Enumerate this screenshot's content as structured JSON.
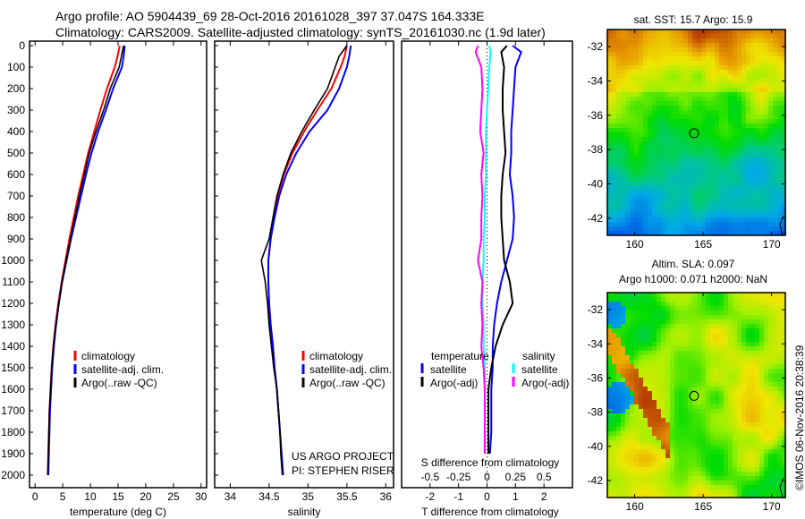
{
  "title_line1": "Argo profile: AO 5904439_69 28-Oct-2016 20161028_397 37.047S 164.333E",
  "title_line2": "Climatology: CARS2009. Satellite-adjusted climatology: synTS_20161030.nc (1.9d later)",
  "project_line1": "US ARGO PROJECT",
  "project_line2": "PI: STEPHEN RISER",
  "timestamp": "©IMOS 06-Nov-2016 20:38:39",
  "colors": {
    "climatology": "#ff0000",
    "satellite": "#0000ff",
    "argo": "#000000",
    "s_satellite": "#00ffff",
    "s_argo": "#ff00ff"
  },
  "chart_data": [
    {
      "type": "line",
      "name": "temperature",
      "xlabel": "temperature (deg C)",
      "ylabel": "",
      "xlim": [
        -1,
        31
      ],
      "ylim": [
        2050,
        0
      ],
      "xticks": [
        0,
        5,
        10,
        15,
        20,
        25,
        30
      ],
      "yticks": [
        0,
        100,
        200,
        300,
        400,
        500,
        600,
        700,
        800,
        900,
        1000,
        1100,
        1200,
        1300,
        1400,
        1500,
        1600,
        1700,
        1800,
        1900,
        2000
      ],
      "legend": [
        "climatology",
        "satellite-adj. clim.",
        "Argo(..raw -QC)"
      ],
      "depth": [
        0,
        50,
        100,
        200,
        300,
        400,
        500,
        600,
        700,
        800,
        900,
        1000,
        1100,
        1200,
        1300,
        1400,
        1500,
        1600,
        1700,
        1800,
        1900,
        2000
      ],
      "series": [
        {
          "name": "climatology",
          "values": [
            15.3,
            14.9,
            14.4,
            13.0,
            11.8,
            10.7,
            9.6,
            8.7,
            7.8,
            7.0,
            6.2,
            5.5,
            4.8,
            4.2,
            3.7,
            3.3,
            3.0,
            2.8,
            2.6,
            2.5,
            2.4,
            2.3
          ]
        },
        {
          "name": "satellite-adj. clim.",
          "values": [
            16.2,
            16.0,
            15.7,
            14.1,
            12.8,
            11.4,
            10.2,
            9.2,
            8.3,
            7.4,
            6.5,
            5.7,
            4.9,
            4.3,
            3.8,
            3.4,
            3.1,
            2.9,
            2.7,
            2.6,
            2.5,
            2.4
          ]
        },
        {
          "name": "Argo(..raw -QC)",
          "values": [
            16.0,
            15.6,
            15.2,
            13.6,
            12.4,
            11.0,
            9.8,
            8.9,
            8.0,
            7.2,
            6.4,
            5.6,
            4.9,
            4.3,
            3.8,
            3.3,
            3.0,
            2.8,
            2.6,
            2.5,
            2.4,
            2.3
          ]
        }
      ]
    },
    {
      "type": "line",
      "name": "salinity",
      "xlabel": "salinity",
      "xlim": [
        33.8,
        36.1
      ],
      "ylim": [
        2050,
        0
      ],
      "xticks": [
        34,
        34.5,
        35,
        35.5,
        36
      ],
      "legend": [
        "climatology",
        "satellite-adj. clim.",
        "Argo(..raw -QC)"
      ],
      "depth": [
        0,
        50,
        100,
        200,
        300,
        400,
        500,
        600,
        700,
        800,
        900,
        1000,
        1100,
        1200,
        1300,
        1400,
        1500,
        1600,
        1700,
        1800,
        1900,
        2000
      ],
      "series": [
        {
          "name": "climatology",
          "values": [
            35.5,
            35.47,
            35.42,
            35.3,
            35.12,
            34.95,
            34.8,
            34.69,
            34.61,
            34.56,
            34.52,
            34.49,
            34.49,
            34.5,
            34.52,
            34.55,
            34.57,
            34.6,
            34.62,
            34.64,
            34.66,
            34.68
          ]
        },
        {
          "name": "satellite-adj. clim.",
          "values": [
            35.55,
            35.53,
            35.5,
            35.4,
            35.25,
            35.02,
            34.85,
            34.72,
            34.63,
            34.57,
            34.52,
            34.49,
            34.49,
            34.5,
            34.52,
            34.55,
            34.57,
            34.6,
            34.62,
            34.64,
            34.66,
            34.68
          ]
        },
        {
          "name": "Argo(..raw -QC)",
          "values": [
            35.5,
            35.4,
            35.35,
            35.25,
            35.08,
            34.92,
            34.78,
            34.68,
            34.6,
            34.55,
            34.5,
            34.4,
            34.45,
            34.48,
            34.5,
            34.53,
            34.56,
            34.6,
            34.62,
            34.64,
            34.65,
            34.67
          ]
        }
      ]
    },
    {
      "type": "line",
      "name": "difference",
      "xlabel": "T difference from climatology",
      "x2label": "S difference from climatology",
      "xlim": [
        -3,
        3
      ],
      "x2lim": [
        -0.75,
        0.75
      ],
      "xticks": [
        -2,
        -1,
        0,
        1,
        2
      ],
      "x2ticks": [
        -0.5,
        -0.25,
        0,
        0.25,
        0.5
      ],
      "x2ticklabels": [
        "-0.5",
        "-0.25",
        "0",
        "0.25",
        "0.5"
      ],
      "ylim": [
        2050,
        0
      ],
      "legend_groups": [
        {
          "title": "temperature",
          "items": [
            "satellite",
            "Argo(-adj)"
          ]
        },
        {
          "title": "salinity",
          "items": [
            "satellite",
            "Argo(-adj)"
          ]
        }
      ],
      "depth": [
        0,
        30,
        100,
        200,
        300,
        400,
        500,
        600,
        700,
        800,
        900,
        1000,
        1100,
        1200,
        1300,
        1400,
        1500,
        1600,
        1700,
        1800,
        1900
      ],
      "series": [
        {
          "name": "T satellite",
          "axis": "T",
          "values": [
            0.9,
            1.2,
            1.0,
            0.95,
            0.9,
            0.85,
            0.85,
            0.8,
            0.9,
            0.95,
            0.9,
            0.7,
            0.5,
            0.35,
            0.25,
            0.2,
            0.2,
            0.15,
            0.15,
            0.15,
            0.1
          ]
        },
        {
          "name": "T Argo(-adj)",
          "axis": "T",
          "values": [
            0.7,
            0.5,
            0.6,
            0.55,
            0.55,
            0.6,
            0.65,
            0.55,
            0.5,
            0.5,
            0.55,
            0.6,
            0.8,
            0.9,
            0.55,
            0.3,
            0.15,
            0.05,
            0.05,
            0.05,
            0.05
          ]
        },
        {
          "name": "S satellite",
          "axis": "S",
          "values": [
            0.02,
            0.03,
            0.02,
            0.01,
            0.0,
            -0.01,
            -0.01,
            -0.01,
            -0.02,
            -0.02,
            -0.03,
            -0.03,
            -0.04,
            -0.04,
            -0.03,
            -0.03,
            -0.02,
            -0.02,
            -0.02,
            -0.02,
            -0.02
          ]
        },
        {
          "name": "S Argo(-adj)",
          "axis": "S",
          "values": [
            -0.08,
            -0.1,
            -0.05,
            -0.04,
            -0.05,
            -0.06,
            -0.03,
            -0.05,
            -0.04,
            -0.05,
            -0.05,
            -0.08,
            -0.04,
            -0.05,
            -0.04,
            -0.05,
            -0.03,
            -0.02,
            -0.02,
            -0.02,
            -0.02
          ]
        }
      ]
    },
    {
      "type": "heatmap",
      "name": "sst-map",
      "title": "sat. SST: 15.7 Argo: 15.9",
      "xlim": [
        158,
        171
      ],
      "ylim": [
        -43,
        -31
      ],
      "xticks": [
        160,
        165,
        170
      ],
      "yticks": [
        -32,
        -34,
        -36,
        -38,
        -40,
        -42
      ],
      "marker": {
        "lon": 164.333,
        "lat": -37.047
      }
    },
    {
      "type": "heatmap",
      "name": "sla-map",
      "title_line1": "Altim. SLA: 0.097",
      "title_line2": "Argo h1000: 0.071 h2000: NaN",
      "xlim": [
        158,
        171
      ],
      "ylim": [
        -43,
        -31
      ],
      "xticks": [
        160,
        165,
        170
      ],
      "yticks": [
        -32,
        -34,
        -36,
        -38,
        -40,
        -42
      ],
      "marker": {
        "lon": 164.333,
        "lat": -37.047
      }
    }
  ]
}
